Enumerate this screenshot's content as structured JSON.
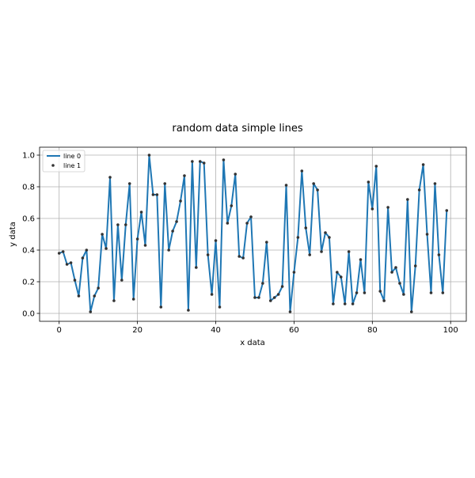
{
  "chart_data": {
    "type": "line",
    "title": "random data simple lines",
    "xlabel": "x data",
    "ylabel": "y data",
    "xlim": [
      -5,
      104
    ],
    "ylim": [
      -0.05,
      1.05
    ],
    "xticks": [
      0,
      20,
      40,
      60,
      80,
      100
    ],
    "yticks": [
      0.0,
      0.2,
      0.4,
      0.6,
      0.8,
      1.0
    ],
    "xtick_labels": [
      "0",
      "20",
      "40",
      "60",
      "80",
      "100"
    ],
    "ytick_labels": [
      "0.0",
      "0.2",
      "0.4",
      "0.6",
      "0.8",
      "1.0"
    ],
    "grid": true,
    "legend_position": "top-left",
    "series": [
      {
        "name": "line 0",
        "style": "line",
        "color": "#1f77b4",
        "x": [
          0,
          1,
          2,
          3,
          4,
          5,
          6,
          7,
          8,
          9,
          10,
          11,
          12,
          13,
          14,
          15,
          16,
          17,
          18,
          19,
          20,
          21,
          22,
          23,
          24,
          25,
          26,
          27,
          28,
          29,
          30,
          31,
          32,
          33,
          34,
          35,
          36,
          37,
          38,
          39,
          40,
          41,
          42,
          43,
          44,
          45,
          46,
          47,
          48,
          49,
          50,
          51,
          52,
          53,
          54,
          55,
          56,
          57,
          58,
          59,
          60,
          61,
          62,
          63,
          64,
          65,
          66,
          67,
          68,
          69,
          70,
          71,
          72,
          73,
          74,
          75,
          76,
          77,
          78,
          79,
          80,
          81,
          82,
          83,
          84,
          85,
          86,
          87,
          88,
          89,
          90,
          91,
          92,
          93,
          94,
          95,
          96,
          97,
          98,
          99
        ],
        "y": [
          0.38,
          0.39,
          0.31,
          0.32,
          0.21,
          0.11,
          0.35,
          0.4,
          0.01,
          0.11,
          0.16,
          0.5,
          0.41,
          0.86,
          0.08,
          0.56,
          0.21,
          0.56,
          0.82,
          0.09,
          0.47,
          0.64,
          0.43,
          1.0,
          0.75,
          0.75,
          0.04,
          0.82,
          0.4,
          0.52,
          0.58,
          0.71,
          0.87,
          0.02,
          0.96,
          0.29,
          0.96,
          0.95,
          0.37,
          0.12,
          0.46,
          0.04,
          0.97,
          0.57,
          0.68,
          0.88,
          0.36,
          0.35,
          0.57,
          0.61,
          0.1,
          0.1,
          0.19,
          0.45,
          0.08,
          0.1,
          0.12,
          0.17,
          0.81,
          0.01,
          0.26,
          0.48,
          0.9,
          0.54,
          0.37,
          0.82,
          0.78,
          0.39,
          0.51,
          0.48,
          0.06,
          0.26,
          0.23,
          0.06,
          0.39,
          0.06,
          0.13,
          0.34,
          0.13,
          0.83,
          0.66,
          0.93,
          0.14,
          0.08,
          0.67,
          0.26,
          0.29,
          0.19,
          0.12,
          0.72,
          0.01,
          0.3,
          0.78,
          0.94,
          0.5,
          0.13,
          0.82,
          0.37,
          0.13,
          0.65
        ]
      },
      {
        "name": "line 1",
        "style": "scatter",
        "color": "#333333",
        "x": [
          0,
          1,
          2,
          3,
          4,
          5,
          6,
          7,
          8,
          9,
          10,
          11,
          12,
          13,
          14,
          15,
          16,
          17,
          18,
          19,
          20,
          21,
          22,
          23,
          24,
          25,
          26,
          27,
          28,
          29,
          30,
          31,
          32,
          33,
          34,
          35,
          36,
          37,
          38,
          39,
          40,
          41,
          42,
          43,
          44,
          45,
          46,
          47,
          48,
          49,
          50,
          51,
          52,
          53,
          54,
          55,
          56,
          57,
          58,
          59,
          60,
          61,
          62,
          63,
          64,
          65,
          66,
          67,
          68,
          69,
          70,
          71,
          72,
          73,
          74,
          75,
          76,
          77,
          78,
          79,
          80,
          81,
          82,
          83,
          84,
          85,
          86,
          87,
          88,
          89,
          90,
          91,
          92,
          93,
          94,
          95,
          96,
          97,
          98,
          99
        ],
        "y": [
          0.38,
          0.39,
          0.31,
          0.32,
          0.21,
          0.11,
          0.35,
          0.4,
          0.01,
          0.11,
          0.16,
          0.5,
          0.41,
          0.86,
          0.08,
          0.56,
          0.21,
          0.56,
          0.82,
          0.09,
          0.47,
          0.64,
          0.43,
          1.0,
          0.75,
          0.75,
          0.04,
          0.82,
          0.4,
          0.52,
          0.58,
          0.71,
          0.87,
          0.02,
          0.96,
          0.29,
          0.96,
          0.95,
          0.37,
          0.12,
          0.46,
          0.04,
          0.97,
          0.57,
          0.68,
          0.88,
          0.36,
          0.35,
          0.57,
          0.61,
          0.1,
          0.1,
          0.19,
          0.45,
          0.08,
          0.1,
          0.12,
          0.17,
          0.81,
          0.01,
          0.26,
          0.48,
          0.9,
          0.54,
          0.37,
          0.82,
          0.78,
          0.39,
          0.51,
          0.48,
          0.06,
          0.26,
          0.23,
          0.06,
          0.39,
          0.06,
          0.13,
          0.34,
          0.13,
          0.83,
          0.66,
          0.93,
          0.14,
          0.08,
          0.67,
          0.26,
          0.29,
          0.19,
          0.12,
          0.72,
          0.01,
          0.3,
          0.78,
          0.94,
          0.5,
          0.13,
          0.82,
          0.37,
          0.13,
          0.65
        ]
      }
    ]
  }
}
